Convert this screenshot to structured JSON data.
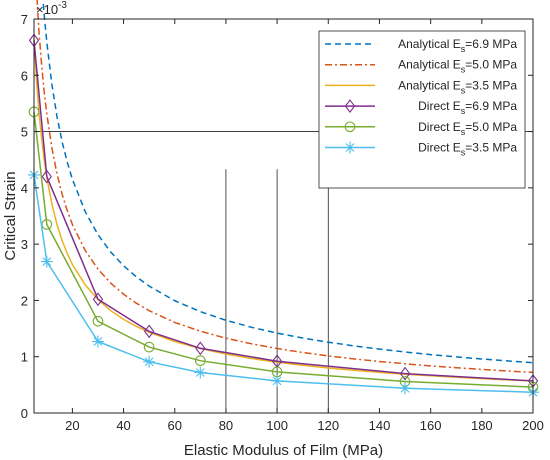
{
  "chart_data": {
    "type": "line",
    "title": "",
    "xlabel": "Elastic Modulus of Film (MPa)",
    "ylabel": "Critical Strain",
    "y_exponent_label": "×10",
    "y_exponent": "-3",
    "xlim": [
      5,
      200
    ],
    "ylim": [
      0,
      7
    ],
    "xticks": [
      20,
      40,
      60,
      80,
      100,
      120,
      140,
      160,
      180,
      200
    ],
    "yticks": [
      0,
      1,
      2,
      3,
      4,
      5,
      6,
      7
    ],
    "grid": "partial",
    "legend_position": "top-right",
    "reference_lines": {
      "horizontal_y": 5,
      "vertical_x": [
        80,
        100,
        120
      ]
    },
    "analytical_x": [
      5,
      6,
      7,
      8,
      9,
      10,
      12,
      14,
      16,
      18,
      20,
      25,
      30,
      35,
      40,
      45,
      50,
      60,
      70,
      80,
      90,
      100,
      110,
      120,
      130,
      140,
      150,
      160,
      170,
      180,
      190,
      200
    ],
    "series": [
      {
        "label_prefix": "Analytical E",
        "label_sub": "s",
        "label_suffix": "=6.9 MPa",
        "kind": "analytical",
        "stroke": "#0072bd",
        "dash": "6,4",
        "k": 0.00844,
        "e0": 6.9
      },
      {
        "label_prefix": "Analytical E",
        "label_sub": "s",
        "label_suffix": "=5.0 MPa",
        "kind": "analytical",
        "stroke": "#d95319",
        "dash": "7,3,2,3",
        "k": 0.00844,
        "e0": 5.0
      },
      {
        "label_prefix": "Analytical E",
        "label_sub": "s",
        "label_suffix": "=3.5 MPa",
        "kind": "analytical",
        "stroke": "#edb120",
        "dash": "",
        "k": 0.00844,
        "e0": 3.5
      },
      {
        "label_prefix": "Direct E",
        "label_sub": "s",
        "label_suffix": "=6.9 MPa",
        "kind": "direct",
        "stroke": "#7e2f8e",
        "marker": "diamond",
        "x": [
          5,
          10,
          30,
          50,
          70,
          100,
          150,
          200
        ],
        "y": [
          6.62,
          4.2,
          2.02,
          1.45,
          1.15,
          0.92,
          0.7,
          0.57
        ]
      },
      {
        "label_prefix": "Direct E",
        "label_sub": "s",
        "label_suffix": "=5.0 MPa",
        "kind": "direct",
        "stroke": "#77ac30",
        "marker": "circle",
        "x": [
          5,
          10,
          30,
          50,
          70,
          100,
          150,
          200
        ],
        "y": [
          5.35,
          3.35,
          1.63,
          1.17,
          0.93,
          0.73,
          0.56,
          0.46
        ]
      },
      {
        "label_prefix": "Direct E",
        "label_sub": "s",
        "label_suffix": "=3.5 MPa",
        "kind": "direct",
        "stroke": "#4dbeee",
        "marker": "asterisk",
        "x": [
          5,
          10,
          30,
          50,
          70,
          100,
          150,
          200
        ],
        "y": [
          4.23,
          2.69,
          1.27,
          0.91,
          0.72,
          0.57,
          0.44,
          0.37
        ]
      }
    ]
  }
}
